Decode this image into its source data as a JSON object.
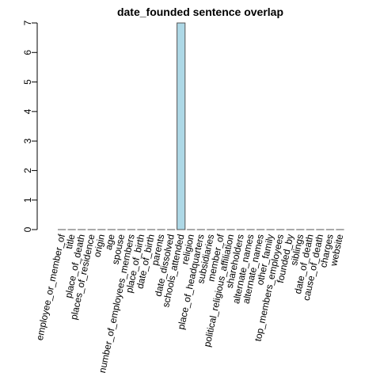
{
  "chart_data": {
    "type": "bar",
    "title": "date_founded sentence overlap",
    "xlabel": "",
    "ylabel": "",
    "ylim": [
      0,
      7
    ],
    "y_ticks": [
      0,
      1,
      2,
      3,
      4,
      5,
      6,
      7
    ],
    "bar_color": "#add8e6",
    "categories": [
      "employee_or_member_of",
      "title",
      "place_of_death",
      "places_of_residence",
      "origin",
      "age",
      "spouse",
      "number_of_employees_members",
      "place_of_birth",
      "date_of_birth",
      "parents",
      "date_dissolved",
      "schools_attended",
      "religion",
      "place_of_headquarters",
      "subsidiaries",
      "member_of",
      "political_religious_affiliation",
      "shareholders",
      "alternate_names",
      "alternate_names",
      "other_family",
      "top_members_employees",
      "founded_by",
      "siblings",
      "date_of_death",
      "cause_of_death",
      "charges",
      "website"
    ],
    "values": [
      0,
      0,
      0,
      0,
      0,
      0,
      0,
      0,
      0,
      0,
      0,
      0,
      7,
      0,
      0,
      0,
      0,
      0,
      0,
      0,
      0,
      0,
      0,
      0,
      0,
      0,
      0,
      0,
      0
    ]
  }
}
